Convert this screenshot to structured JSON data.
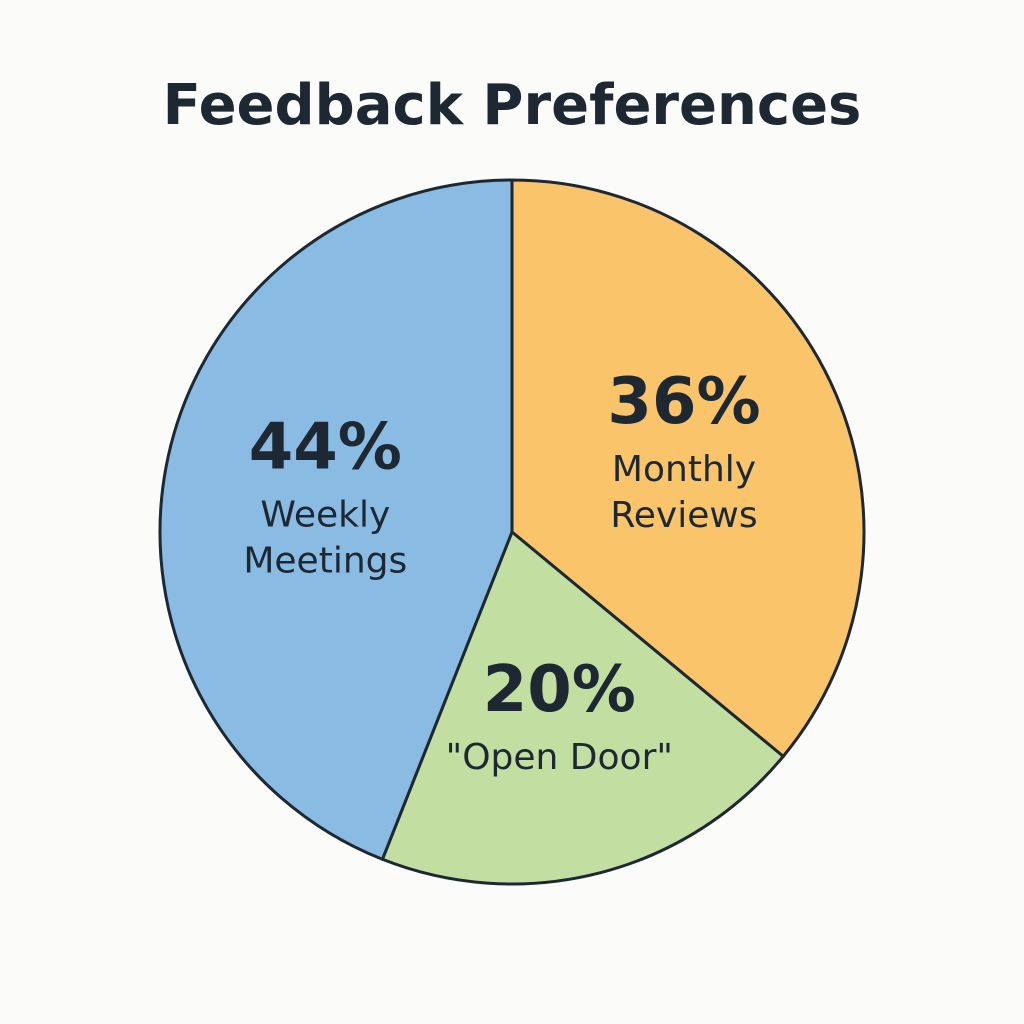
{
  "chart_data": {
    "type": "pie",
    "title": "Feedback Preferences",
    "start_angle_deg": 0,
    "direction": "clockwise",
    "slices": [
      {
        "label_lines": [
          "Monthly",
          "Reviews"
        ],
        "value": 36,
        "value_label": "36%",
        "color": "#f9c46a"
      },
      {
        "label_lines": [
          "\"Open Door\""
        ],
        "value": 20,
        "value_label": "20%",
        "color": "#c2dfa1"
      },
      {
        "label_lines": [
          "Weekly",
          "Meetings"
        ],
        "value": 44,
        "value_label": "44%",
        "color": "#8abce3"
      }
    ],
    "outline_color": "#1e2833"
  }
}
